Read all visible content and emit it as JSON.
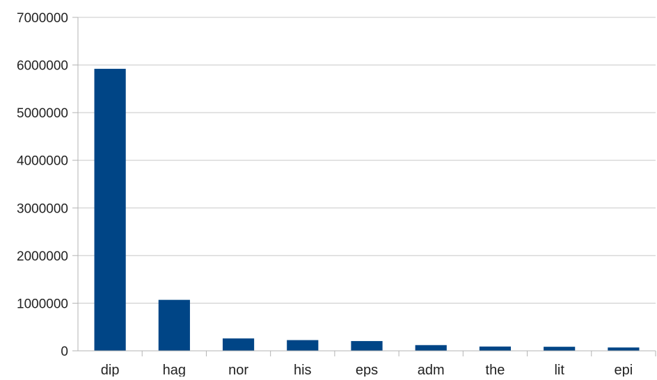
{
  "chart_data": {
    "type": "bar",
    "title": "",
    "xlabel": "",
    "ylabel": "",
    "categories": [
      "dip",
      "hag",
      "nor",
      "his",
      "eps",
      "adm",
      "the",
      "lit",
      "epi"
    ],
    "values": [
      5920000,
      1070000,
      260000,
      225000,
      205000,
      120000,
      90000,
      85000,
      70000
    ],
    "ylim": [
      0,
      7000000
    ],
    "yticks": [
      "0",
      "1000000",
      "2000000",
      "3000000",
      "4000000",
      "5000000",
      "6000000",
      "7000000"
    ],
    "grid": "horizontal",
    "legend": "none",
    "bar_color": "#004586"
  }
}
